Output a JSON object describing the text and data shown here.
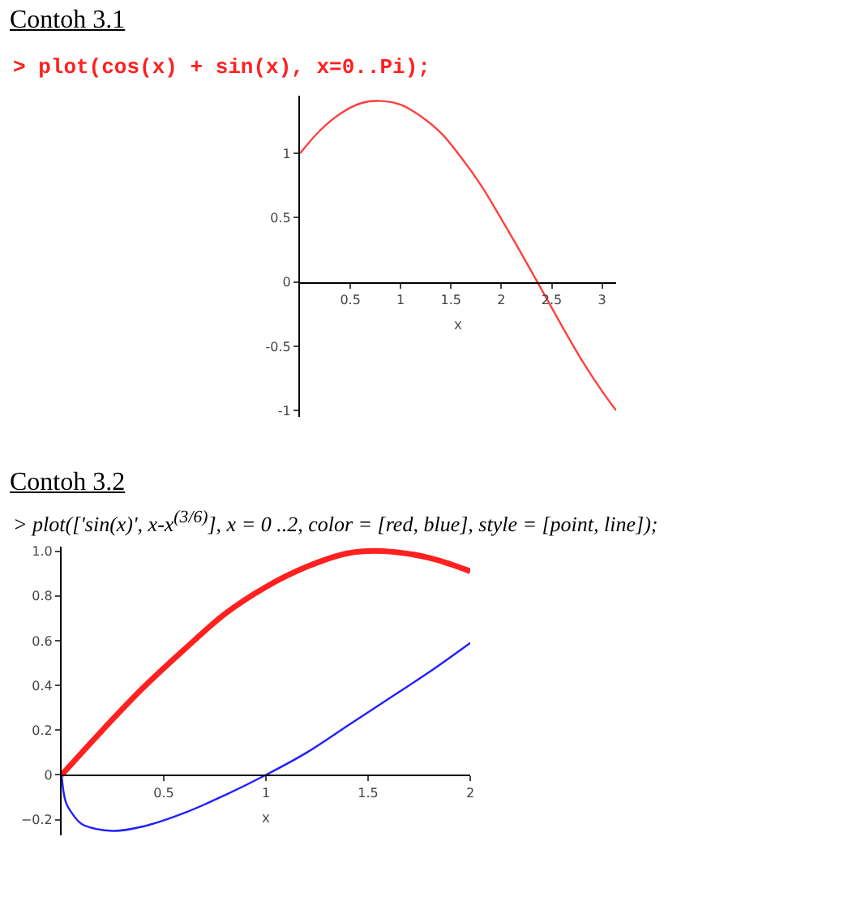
{
  "chart_data": [
    {
      "type": "line",
      "title": "Contoh 3.1",
      "subtitle": "> plot(cos(x) + sin(x), x=0..Pi);",
      "xlabel": "x",
      "x": [
        0,
        0.2,
        0.4,
        0.6,
        0.785,
        1.0,
        1.2,
        1.4,
        1.6,
        1.8,
        2.0,
        2.2,
        2.4,
        2.6,
        2.8,
        3.0,
        3.14
      ],
      "series": [
        {
          "color": "#ff4040",
          "values": [
            1,
            1.18,
            1.31,
            1.39,
            1.41,
            1.38,
            1.29,
            1.16,
            0.97,
            0.75,
            0.49,
            0.22,
            -0.06,
            -0.34,
            -0.61,
            -0.85,
            -1.0
          ]
        }
      ],
      "xlim": [
        0,
        3.14
      ],
      "ylim": [
        -1.05,
        1.45
      ],
      "xticks": [
        0.5,
        1,
        1.5,
        2,
        2.5,
        3
      ],
      "yticks": [
        -1,
        -0.5,
        0,
        0.5,
        1
      ],
      "grid": false,
      "marker": "none",
      "line_style": "solid"
    },
    {
      "type": "line",
      "title": "Contoh  3.2",
      "subtitle": "> plot(['sin(x)', x-x$^{(3/6)}$], x = 0 ..2, color = [red, blue], style = [point, line]);",
      "xlabel": "x",
      "series": [
        {
          "color": "#ff2020",
          "x": [
            0,
            0.2,
            0.4,
            0.6,
            0.8,
            1.0,
            1.2,
            1.4,
            1.57,
            1.8,
            2.0
          ],
          "values": [
            0,
            0.2,
            0.39,
            0.56,
            0.72,
            0.84,
            0.93,
            0.99,
            1.0,
            0.97,
            0.91
          ]
        },
        {
          "color": "#2020ff",
          "x": [
            0,
            0.02,
            0.05,
            0.1,
            0.25,
            0.4,
            0.6,
            0.8,
            1.0,
            1.2,
            1.4,
            1.6,
            1.8,
            2.0
          ],
          "values": [
            0,
            -0.12,
            -0.17,
            -0.22,
            -0.25,
            -0.23,
            -0.17,
            -0.09,
            0,
            0.1,
            0.22,
            0.34,
            0.46,
            0.59
          ]
        }
      ],
      "xlim": [
        0,
        2
      ],
      "ylim": [
        -0.27,
        1.02
      ],
      "xticks": [
        0.5,
        1,
        1.5,
        2
      ],
      "yticks": [
        {
          "value": -0.2,
          "label": "−0.2"
        },
        0,
        0.2,
        0.4,
        0.6,
        0.8,
        {
          "value": 1,
          "label": "1.0"
        }
      ],
      "grid": false,
      "marker": "none",
      "line_style": "solid"
    }
  ]
}
